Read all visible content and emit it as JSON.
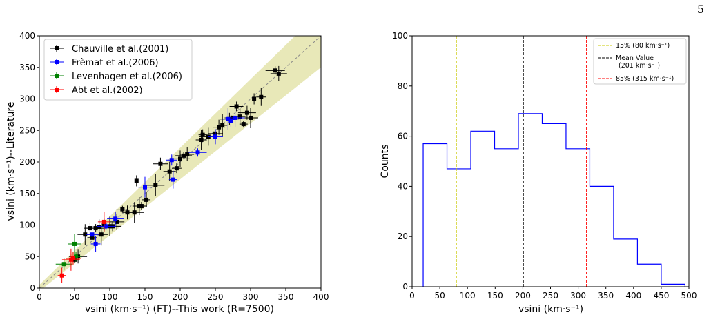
{
  "page_number": "5",
  "chart_data": [
    {
      "type": "scatter",
      "xlabel": "vsini (km·s⁻¹) (FT)--This work (R=7500)",
      "ylabel": "vsini (km·s⁻¹)--Literature",
      "xlim": [
        0,
        400
      ],
      "ylim": [
        0,
        400
      ],
      "xticks": [
        "0",
        "50",
        "100",
        "150",
        "200",
        "250",
        "300",
        "350",
        "400"
      ],
      "yticks": [
        "0",
        "50",
        "100",
        "150",
        "200",
        "250",
        "300",
        "350",
        "400"
      ],
      "legend_position": "top-left",
      "one_to_one_line": true,
      "band_color": "#e8e8b8",
      "series": [
        {
          "name": "Chauville et al.(2001)",
          "color": "#000000",
          "points": [
            [
              50,
              45
            ],
            [
              55,
              50
            ],
            [
              65,
              85
            ],
            [
              72,
              95
            ],
            [
              75,
              80
            ],
            [
              80,
              95
            ],
            [
              85,
              97
            ],
            [
              88,
              85
            ],
            [
              92,
              100
            ],
            [
              100,
              98
            ],
            [
              104,
              98
            ],
            [
              110,
              105
            ],
            [
              118,
              125
            ],
            [
              125,
              120
            ],
            [
              135,
              120
            ],
            [
              138,
              170
            ],
            [
              142,
              130
            ],
            [
              145,
              130
            ],
            [
              152,
              140
            ],
            [
              165,
              163
            ],
            [
              172,
              197
            ],
            [
              185,
              185
            ],
            [
              195,
              190
            ],
            [
              200,
              205
            ],
            [
              205,
              210
            ],
            [
              210,
              212
            ],
            [
              230,
              235
            ],
            [
              232,
              243
            ],
            [
              240,
              240
            ],
            [
              250,
              245
            ],
            [
              255,
              255
            ],
            [
              260,
              258
            ],
            [
              270,
              268
            ],
            [
              275,
              270
            ],
            [
              280,
              288
            ],
            [
              285,
              272
            ],
            [
              290,
              260
            ],
            [
              295,
              278
            ],
            [
              300,
              270
            ],
            [
              305,
              300
            ],
            [
              315,
              303
            ],
            [
              335,
              345
            ],
            [
              340,
              340
            ]
          ]
        },
        {
          "name": "Frèmat et al.(2006)",
          "color": "#0000ff",
          "points": [
            [
              75,
              85
            ],
            [
              80,
              70
            ],
            [
              95,
              98
            ],
            [
              108,
              110
            ],
            [
              150,
              160
            ],
            [
              188,
              203
            ],
            [
              190,
              172
            ],
            [
              225,
              215
            ],
            [
              250,
              240
            ],
            [
              268,
              268
            ],
            [
              272,
              265
            ],
            [
              278,
              270
            ]
          ]
        },
        {
          "name": "Levenhagen et al.(2006)",
          "color": "#008000",
          "points": [
            [
              35,
              38
            ],
            [
              50,
              70
            ],
            [
              52,
              50
            ]
          ]
        },
        {
          "name": "Abt et al.(2002)",
          "color": "#ff0000",
          "points": [
            [
              32,
              20
            ],
            [
              45,
              45
            ],
            [
              48,
              47
            ],
            [
              92,
              105
            ]
          ]
        }
      ]
    },
    {
      "type": "histogram",
      "xlabel": "vsini (km·s⁻¹)",
      "ylabel": "Counts",
      "xlim": [
        0,
        500
      ],
      "ylim": [
        0,
        100
      ],
      "xticks": [
        "0",
        "50",
        "100",
        "150",
        "200",
        "250",
        "300",
        "350",
        "400",
        "450",
        "500"
      ],
      "yticks": [
        "0",
        "20",
        "40",
        "60",
        "80",
        "100"
      ],
      "color": "#0000ff",
      "bin_edges": [
        20,
        63,
        106,
        149,
        192,
        235,
        278,
        321,
        364,
        407,
        450,
        493
      ],
      "counts": [
        57,
        47,
        62,
        55,
        69,
        65,
        55,
        40,
        19,
        9,
        1
      ],
      "vlines": [
        {
          "x": 80,
          "color": "#c8c800",
          "label": "15% (80 km·s⁻¹)"
        },
        {
          "x": 201,
          "color": "#000000",
          "label": "Mean Value",
          "label2": "(201 km·s⁻¹)"
        },
        {
          "x": 315,
          "color": "#ff0000",
          "label": "85% (315 km·s⁻¹)"
        }
      ],
      "legend_position": "top-right"
    }
  ]
}
